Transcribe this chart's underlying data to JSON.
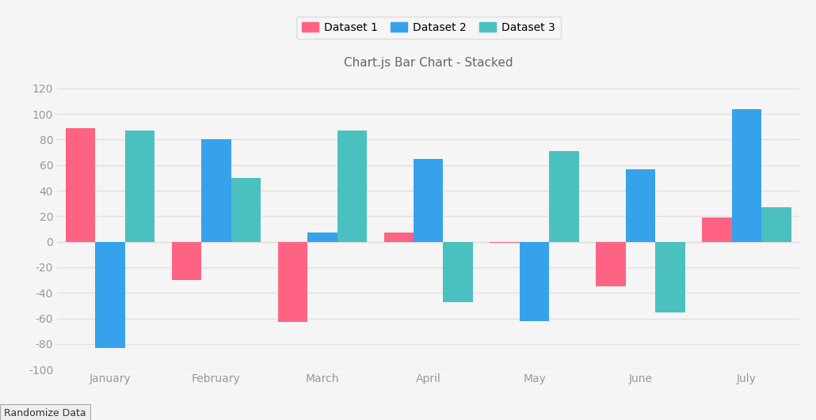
{
  "title": "Chart.js Bar Chart - Stacked",
  "categories": [
    "January",
    "February",
    "March",
    "April",
    "May",
    "June",
    "July"
  ],
  "datasets": [
    {
      "label": "Dataset 1",
      "color": "#FF6384",
      "values": [
        89,
        -30,
        -63,
        7,
        -1,
        -35,
        19
      ]
    },
    {
      "label": "Dataset 2",
      "color": "#36A2EB",
      "values": [
        -83,
        80,
        7,
        65,
        -62,
        57,
        104
      ]
    },
    {
      "label": "Dataset 3",
      "color": "#4BC0C0",
      "values": [
        87,
        50,
        87,
        -47,
        71,
        -55,
        27
      ]
    }
  ],
  "ylim": [
    -100,
    130
  ],
  "yticks": [
    -100,
    -80,
    -60,
    -40,
    -20,
    0,
    20,
    40,
    60,
    80,
    100,
    120
  ],
  "background_color": "#f5f5f5",
  "grid_color": "#e0e0e0",
  "bar_width": 0.28,
  "title_fontsize": 11,
  "tick_label_color": "#999999",
  "legend_frame_color": "#dddddd"
}
